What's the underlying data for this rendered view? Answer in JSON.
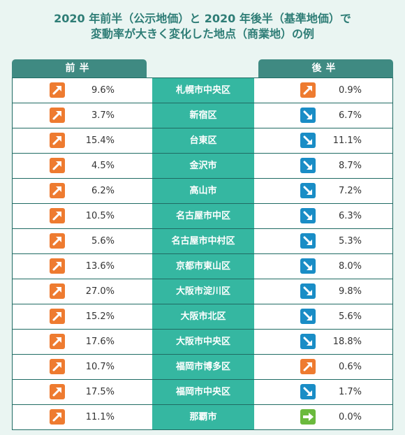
{
  "title": {
    "line1": "2020 年前半（公示地価）と 2020 年後半（基準地価）で",
    "line2": "変動率が大きく変化した地点（商業地）の例"
  },
  "headers": {
    "left": "前半",
    "right": "後半"
  },
  "colors": {
    "up": "#ee7b30",
    "down": "#1a8dc6",
    "flat": "#6bba3d",
    "mid": "#35b7a1",
    "header": "#3f8a82"
  },
  "rows": [
    {
      "location": "札幌市中央区",
      "first": "9.6%",
      "first_icon": "arrow-up-icon",
      "second": "0.9%",
      "second_icon": "arrow-up-icon"
    },
    {
      "location": "新宿区",
      "first": "3.7%",
      "first_icon": "arrow-up-icon",
      "second": "6.7%",
      "second_icon": "arrow-down-icon"
    },
    {
      "location": "台東区",
      "first": "15.4%",
      "first_icon": "arrow-up-icon",
      "second": "11.1%",
      "second_icon": "arrow-down-icon"
    },
    {
      "location": "金沢市",
      "first": "4.5%",
      "first_icon": "arrow-up-icon",
      "second": "8.7%",
      "second_icon": "arrow-down-icon"
    },
    {
      "location": "高山市",
      "first": "6.2%",
      "first_icon": "arrow-up-icon",
      "second": "7.2%",
      "second_icon": "arrow-down-icon"
    },
    {
      "location": "名古屋市中区",
      "first": "10.5%",
      "first_icon": "arrow-up-icon",
      "second": "6.3%",
      "second_icon": "arrow-down-icon"
    },
    {
      "location": "名古屋市中村区",
      "first": "5.6%",
      "first_icon": "arrow-up-icon",
      "second": "5.3%",
      "second_icon": "arrow-down-icon"
    },
    {
      "location": "京都市東山区",
      "first": "13.6%",
      "first_icon": "arrow-up-icon",
      "second": "8.0%",
      "second_icon": "arrow-down-icon"
    },
    {
      "location": "大阪市淀川区",
      "first": "27.0%",
      "first_icon": "arrow-up-icon",
      "second": "9.8%",
      "second_icon": "arrow-down-icon"
    },
    {
      "location": "大阪市北区",
      "first": "15.2%",
      "first_icon": "arrow-up-icon",
      "second": "5.6%",
      "second_icon": "arrow-down-icon"
    },
    {
      "location": "大阪市中央区",
      "first": "17.6%",
      "first_icon": "arrow-up-icon",
      "second": "18.8%",
      "second_icon": "arrow-down-icon"
    },
    {
      "location": "福岡市博多区",
      "first": "10.7%",
      "first_icon": "arrow-up-icon",
      "second": "0.6%",
      "second_icon": "arrow-up-icon"
    },
    {
      "location": "福岡市中央区",
      "first": "17.5%",
      "first_icon": "arrow-up-icon",
      "second": "1.7%",
      "second_icon": "arrow-down-icon"
    },
    {
      "location": "那覇市",
      "first": "11.1%",
      "first_icon": "arrow-up-icon",
      "second": "0.0%",
      "second_icon": "arrow-right-icon"
    }
  ]
}
